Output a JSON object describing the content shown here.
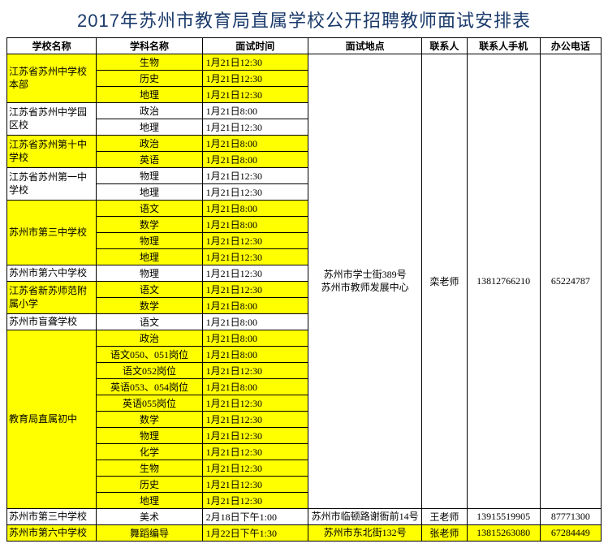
{
  "title": "2017年苏州市教育局直属学校公开招聘教师面试安排表",
  "headers": {
    "school": "学校名称",
    "subject": "学科名称",
    "time": "面试时间",
    "location": "面试地点",
    "contact": "联系人",
    "phone": "联系人手机",
    "office": "办公电话"
  },
  "colors": {
    "highlight": "#ffff00",
    "white": "#ffffff",
    "border": "#000000",
    "title_color": "#1a3a6b"
  },
  "mainBlock": {
    "location": "苏州市学士街389号\n苏州市教师发展中心",
    "contact": "栾老师",
    "phone": "13812766210",
    "office": "65224787"
  },
  "groups": [
    {
      "school": "江苏省苏州中学校本部",
      "highlight": true,
      "rows": [
        {
          "subject": "生物",
          "time": "1月21日12:30"
        },
        {
          "subject": "历史",
          "time": "1月21日12:30"
        },
        {
          "subject": "地理",
          "time": "1月21日12:30"
        }
      ]
    },
    {
      "school": "江苏省苏州中学园区校",
      "highlight": false,
      "rows": [
        {
          "subject": "政治",
          "time": "1月21日8:00"
        },
        {
          "subject": "地理",
          "time": "1月21日12:30"
        }
      ]
    },
    {
      "school": "江苏省苏州第十中学校",
      "highlight": true,
      "rows": [
        {
          "subject": "政治",
          "time": "1月21日8:00"
        },
        {
          "subject": "英语",
          "time": "1月21日8:00"
        }
      ]
    },
    {
      "school": "江苏省苏州第一中学校",
      "highlight": false,
      "rows": [
        {
          "subject": "物理",
          "time": "1月21日12:30"
        },
        {
          "subject": "地理",
          "time": "1月21日12:30"
        }
      ]
    },
    {
      "school": "苏州市第三中学校",
      "highlight": true,
      "rows": [
        {
          "subject": "语文",
          "time": "1月21日8:00"
        },
        {
          "subject": "数学",
          "time": "1月21日8:00"
        },
        {
          "subject": "物理",
          "time": "1月21日12:30"
        },
        {
          "subject": "地理",
          "time": "1月21日12:30"
        }
      ]
    },
    {
      "school": "苏州市第六中学校",
      "highlight": false,
      "rows": [
        {
          "subject": "物理",
          "time": "1月21日12:30"
        }
      ]
    },
    {
      "school": "江苏省新苏师范附属小学",
      "highlight": true,
      "rows": [
        {
          "subject": "语文",
          "time": "1月21日12:30"
        },
        {
          "subject": "数学",
          "time": "1月21日8:00"
        }
      ]
    },
    {
      "school": "苏州市盲聋学校",
      "highlight": false,
      "rows": [
        {
          "subject": "语文",
          "time": "1月21日8:00"
        }
      ]
    },
    {
      "school": "教育局直属初中",
      "highlight": true,
      "rows": [
        {
          "subject": "政治",
          "time": "1月21日8:00"
        },
        {
          "subject": "语文050、051岗位",
          "time": "1月21日8:00"
        },
        {
          "subject": "语文052岗位",
          "time": "1月21日12:30"
        },
        {
          "subject": "英语053、054岗位",
          "time": "1月21日8:00"
        },
        {
          "subject": "英语055岗位",
          "time": "1月21日12:30"
        },
        {
          "subject": "数学",
          "time": "1月21日12:30"
        },
        {
          "subject": "物理",
          "time": "1月21日12:30"
        },
        {
          "subject": "化学",
          "time": "1月21日12:30"
        },
        {
          "subject": "生物",
          "time": "1月21日12:30"
        },
        {
          "subject": "历史",
          "time": "1月21日12:30"
        },
        {
          "subject": "地理",
          "time": "1月21日12:30"
        }
      ]
    }
  ],
  "extraRows": [
    {
      "school": "苏州市第三中学校",
      "subject": "美术",
      "time": "2月18日下午1:00",
      "location": "苏州市临顿路谢衙前14号",
      "contact": "王老师",
      "phone": "13915519905",
      "office": "87771300",
      "highlight": false
    },
    {
      "school": "苏州市第六中学校",
      "subject": "舞蹈编导",
      "time": "1月22日下午1:30",
      "location": "苏州市东北街132号",
      "contact": "张老师",
      "phone": "13815263080",
      "office": "67284449",
      "highlight": true
    }
  ]
}
